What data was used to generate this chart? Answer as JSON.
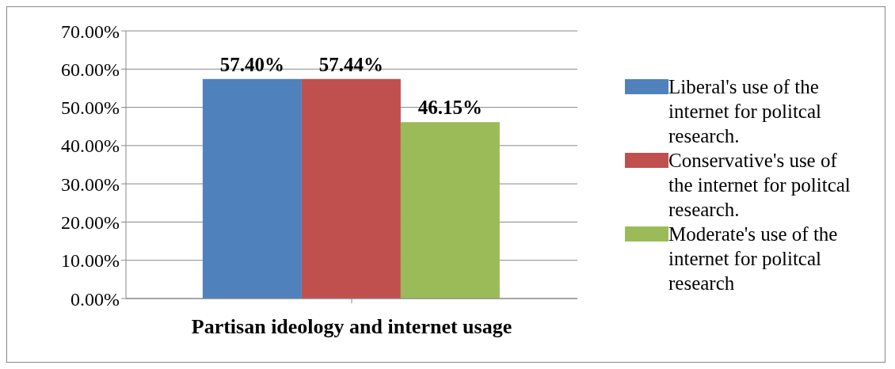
{
  "chart_data": {
    "type": "bar",
    "categories": [
      "Partisan ideology and internet usage"
    ],
    "series": [
      {
        "name": "Liberal's use of the internet for politcal research.",
        "color": "#4f81bd",
        "values": [
          57.4
        ],
        "value_labels": [
          "57.40%"
        ]
      },
      {
        "name": "Conservative's use of the internet for politcal research.",
        "color": "#c0504d",
        "values": [
          57.44
        ],
        "value_labels": [
          "57.44%"
        ]
      },
      {
        "name": "Moderate's use of the internet for politcal research",
        "color": "#9bbb59",
        "values": [
          46.15
        ],
        "value_labels": [
          "46.15%"
        ]
      }
    ],
    "ylim": [
      0,
      70
    ],
    "yticks": [
      {
        "value": 0,
        "label": "0.00%"
      },
      {
        "value": 10,
        "label": "10.00%"
      },
      {
        "value": 20,
        "label": "20.00%"
      },
      {
        "value": 30,
        "label": "30.00%"
      },
      {
        "value": 40,
        "label": "40.00%"
      },
      {
        "value": 50,
        "label": "50.00%"
      },
      {
        "value": 60,
        "label": "60.00%"
      },
      {
        "value": 70,
        "label": "70.00%"
      }
    ],
    "grid": "y",
    "legend": "right"
  }
}
